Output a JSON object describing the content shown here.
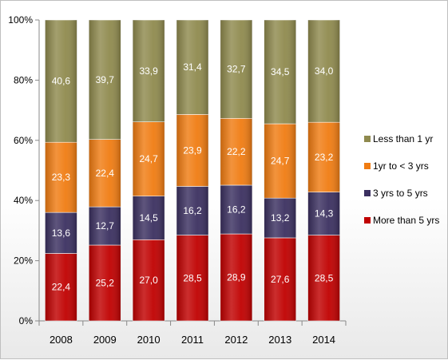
{
  "chart_data": {
    "type": "bar",
    "stacked": true,
    "categories": [
      "2008",
      "2009",
      "2010",
      "2011",
      "2012",
      "2013",
      "2014"
    ],
    "series": [
      {
        "name": "More than 5 yrs",
        "color": "#c00000",
        "values": [
          22.4,
          25.2,
          27.0,
          28.5,
          28.9,
          27.6,
          28.5
        ],
        "labels": [
          "22,4",
          "25,2",
          "27,0",
          "28,5",
          "28,9",
          "27,6",
          "28,5"
        ]
      },
      {
        "name": "3 yrs to 5 yrs",
        "color": "#3b3060",
        "values": [
          13.6,
          12.7,
          14.5,
          16.2,
          16.2,
          13.2,
          14.3
        ],
        "labels": [
          "13,6",
          "12,7",
          "14,5",
          "16,2",
          "16,2",
          "13,2",
          "14,3"
        ]
      },
      {
        "name": "1yr to < 3 yrs",
        "color": "#f07c12",
        "values": [
          23.3,
          22.4,
          24.7,
          23.9,
          22.2,
          24.7,
          23.2
        ],
        "labels": [
          "23,3",
          "22,4",
          "24,7",
          "23,9",
          "22,2",
          "24,7",
          "23,2"
        ]
      },
      {
        "name": "Less than 1 yr",
        "color": "#8f8a4e",
        "values": [
          40.6,
          39.7,
          33.9,
          31.4,
          32.7,
          34.5,
          34.0
        ],
        "labels": [
          "40,6",
          "39,7",
          "33,9",
          "31,4",
          "32,7",
          "34,5",
          "34,0"
        ]
      }
    ],
    "yticks": [
      0,
      20,
      40,
      60,
      80,
      100
    ],
    "ytick_labels": [
      "0%",
      "20%",
      "40%",
      "60%",
      "80%",
      "100%"
    ],
    "ylim": [
      0,
      100
    ],
    "legend": {
      "placement": "right",
      "order": [
        "Less than 1 yr",
        "1yr to < 3 yrs",
        "3 yrs to 5 yrs",
        "More than 5 yrs"
      ]
    },
    "grid": false
  }
}
